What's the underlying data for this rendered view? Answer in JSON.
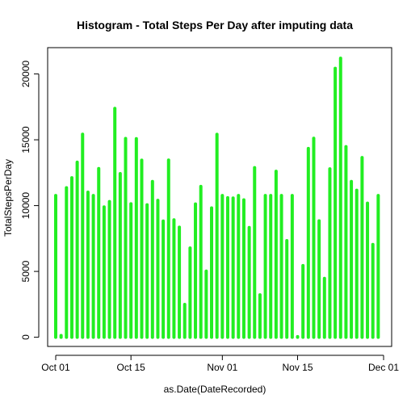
{
  "chart_data": {
    "type": "bar",
    "title": "Histogram - Total Steps Per Day after imputing data",
    "xlabel": "as.Date(DateRecorded)",
    "ylabel": "TotalStepsPerDay",
    "x_start_date": "2012-10-01",
    "x_ticks": [
      {
        "label": "Oct 01",
        "day": 0
      },
      {
        "label": "Oct 15",
        "day": 14
      },
      {
        "label": "Nov 01",
        "day": 31
      },
      {
        "label": "Nov 15",
        "day": 45
      },
      {
        "label": "Dec 01",
        "day": 61
      }
    ],
    "xlim_days": [
      -1.5,
      62.5
    ],
    "y_ticks": [
      0,
      5000,
      10000,
      15000,
      20000
    ],
    "ylim": [
      -700,
      22000
    ],
    "bar_color": "#22ee22",
    "values": [
      10766,
      126,
      11352,
      12116,
      13294,
      15420,
      11015,
      10766,
      12811,
      9900,
      10304,
      17382,
      12426,
      15098,
      10139,
      15084,
      13452,
      10056,
      11829,
      10395,
      8821,
      13460,
      8918,
      8355,
      2492,
      6778,
      10119,
      11458,
      5018,
      9819,
      15414,
      10766,
      10600,
      10571,
      10766,
      10439,
      8334,
      12883,
      3219,
      10766,
      10766,
      12608,
      10765,
      7336,
      10766,
      41,
      5441,
      14339,
      15110,
      8841,
      4472,
      12787,
      20427,
      21194,
      14478,
      11834,
      11162,
      13646,
      10183,
      7047,
      10766
    ]
  }
}
